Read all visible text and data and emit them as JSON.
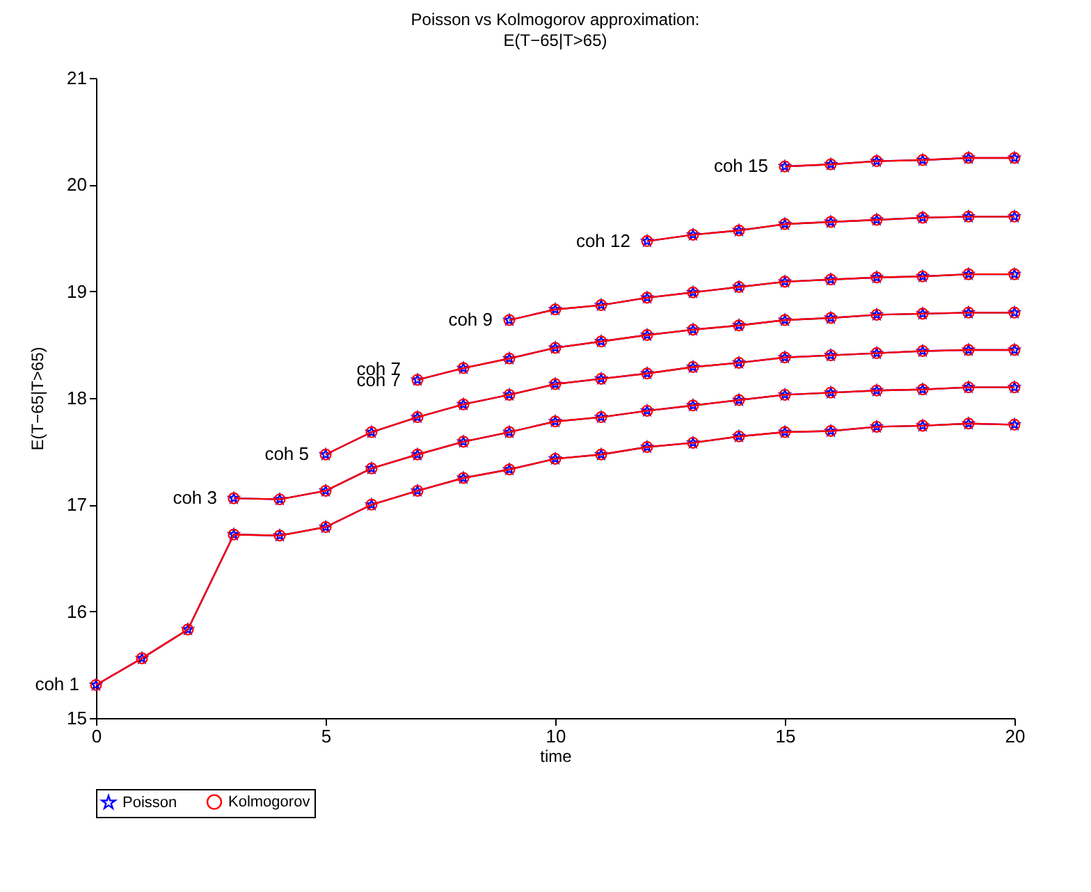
{
  "chart_data": {
    "type": "line",
    "title": "Poisson vs Kolmogorov approximation:\nE(T−65|T>65)",
    "xlabel": "time",
    "ylabel": "E(T−65|T>65)",
    "xlim": [
      0,
      20
    ],
    "xticks": [
      0,
      5,
      10,
      15,
      20
    ],
    "ylim": [
      15,
      21
    ],
    "yticks": [
      15,
      16,
      17,
      18,
      19,
      20,
      21
    ],
    "grid": false,
    "legend": "bottom",
    "line_style": "solid",
    "series": [
      {
        "name": "Poisson",
        "color": "#0000ff",
        "marker": "star",
        "x": [
          0,
          1,
          2,
          3,
          4,
          5,
          6,
          7,
          8,
          9,
          10,
          11,
          12,
          13,
          14,
          15,
          16,
          17,
          18,
          19,
          20
        ],
        "values": [
          15.31,
          15.56,
          15.83,
          16.72,
          16.71,
          16.79,
          17.0,
          17.13,
          17.25,
          17.33,
          17.43,
          17.47,
          17.54,
          17.58,
          17.64,
          17.68,
          17.69,
          17.73,
          17.74,
          17.76,
          17.75
        ]
      },
      {
        "name": "Kolmogorov",
        "color": "#ff0000",
        "marker": "circle",
        "x": [
          0,
          1,
          2,
          3,
          4,
          5,
          6,
          7,
          8,
          9,
          10,
          11,
          12,
          13,
          14,
          15,
          16,
          17,
          18,
          19,
          20
        ],
        "values": [
          15.31,
          15.56,
          15.83,
          16.72,
          16.71,
          16.79,
          17.0,
          17.13,
          17.25,
          17.33,
          17.43,
          17.47,
          17.54,
          17.58,
          17.64,
          17.68,
          17.69,
          17.73,
          17.74,
          17.76,
          17.75
        ]
      },
      {
        "color": "#0000ff",
        "marker": "star",
        "x": [
          3,
          4,
          5,
          6,
          7,
          8,
          9,
          10,
          11,
          12,
          13,
          14,
          15,
          16,
          17,
          18,
          19,
          20
        ],
        "values": [
          17.06,
          17.05,
          17.13,
          17.34,
          17.47,
          17.59,
          17.68,
          17.78,
          17.82,
          17.88,
          17.93,
          17.98,
          18.03,
          18.05,
          18.07,
          18.08,
          18.1,
          18.1
        ]
      },
      {
        "color": "#ff0000",
        "marker": "circle",
        "x": [
          3,
          4,
          5,
          6,
          7,
          8,
          9,
          10,
          11,
          12,
          13,
          14,
          15,
          16,
          17,
          18,
          19,
          20
        ],
        "values": [
          17.06,
          17.05,
          17.13,
          17.34,
          17.47,
          17.59,
          17.68,
          17.78,
          17.82,
          17.88,
          17.93,
          17.98,
          18.03,
          18.05,
          18.07,
          18.08,
          18.1,
          18.1
        ]
      },
      {
        "color": "#0000ff",
        "marker": "star",
        "x": [
          5,
          6,
          7,
          8,
          9,
          10,
          11,
          12,
          13,
          14,
          15,
          16,
          17,
          18,
          19,
          20
        ],
        "values": [
          17.47,
          17.68,
          17.82,
          17.94,
          18.03,
          18.13,
          18.18,
          18.23,
          18.29,
          18.33,
          18.38,
          18.4,
          18.42,
          18.44,
          18.45,
          18.45
        ]
      },
      {
        "color": "#ff0000",
        "marker": "circle",
        "x": [
          5,
          6,
          7,
          8,
          9,
          10,
          11,
          12,
          13,
          14,
          15,
          16,
          17,
          18,
          19,
          20
        ],
        "values": [
          17.47,
          17.68,
          17.82,
          17.94,
          18.03,
          18.13,
          18.18,
          18.23,
          18.29,
          18.33,
          18.38,
          18.4,
          18.42,
          18.44,
          18.45,
          18.45
        ]
      },
      {
        "color": "#0000ff",
        "marker": "star",
        "x": [
          7,
          8,
          9,
          10,
          11,
          12,
          13,
          14,
          15,
          16,
          17,
          18,
          19,
          20
        ],
        "values": [
          18.17,
          18.28,
          18.37,
          18.47,
          18.53,
          18.59,
          18.64,
          18.68,
          18.73,
          18.75,
          18.78,
          18.79,
          18.8,
          18.8
        ]
      },
      {
        "color": "#ff0000",
        "marker": "circle",
        "x": [
          7,
          8,
          9,
          10,
          11,
          12,
          13,
          14,
          15,
          16,
          17,
          18,
          19,
          20
        ],
        "values": [
          18.17,
          18.28,
          18.37,
          18.47,
          18.53,
          18.59,
          18.64,
          18.68,
          18.73,
          18.75,
          18.78,
          18.79,
          18.8,
          18.8
        ]
      },
      {
        "color": "#0000ff",
        "marker": "star",
        "x": [
          9,
          10,
          11,
          12,
          13,
          14,
          15,
          16,
          17,
          18,
          19,
          20
        ],
        "values": [
          18.73,
          18.83,
          18.87,
          18.94,
          18.99,
          19.04,
          19.09,
          19.11,
          19.13,
          19.14,
          19.16,
          19.16
        ]
      },
      {
        "color": "#ff0000",
        "marker": "circle",
        "x": [
          9,
          10,
          11,
          12,
          13,
          14,
          15,
          16,
          17,
          18,
          19,
          20
        ],
        "values": [
          18.73,
          18.83,
          18.87,
          18.94,
          18.99,
          19.04,
          19.09,
          19.11,
          19.13,
          19.14,
          19.16,
          19.16
        ]
      },
      {
        "color": "#0000ff",
        "marker": "star",
        "x": [
          12,
          13,
          14,
          15,
          16,
          17,
          18,
          19,
          20
        ],
        "values": [
          19.47,
          19.53,
          19.57,
          19.63,
          19.65,
          19.67,
          19.69,
          19.7,
          19.7
        ]
      },
      {
        "color": "#ff0000",
        "marker": "circle",
        "x": [
          12,
          13,
          14,
          15,
          16,
          17,
          18,
          19,
          20
        ],
        "values": [
          19.47,
          19.53,
          19.57,
          19.63,
          19.65,
          19.67,
          19.69,
          19.7,
          19.7
        ]
      },
      {
        "color": "#0000ff",
        "marker": "star",
        "x": [
          15,
          16,
          17,
          18,
          19,
          20
        ],
        "values": [
          20.17,
          20.19,
          20.22,
          20.23,
          20.25,
          20.25
        ]
      },
      {
        "color": "#ff0000",
        "marker": "circle",
        "x": [
          15,
          16,
          17,
          18,
          19,
          20
        ],
        "values": [
          20.17,
          20.19,
          20.22,
          20.23,
          20.25,
          20.25
        ]
      }
    ],
    "annotations": [
      {
        "text": "coh 1",
        "x": 0,
        "y": 15.31
      },
      {
        "text": "coh 3",
        "x": 3,
        "y": 17.06
      },
      {
        "text": "coh 5",
        "x": 5,
        "y": 17.47
      },
      {
        "text": "coh 7",
        "x": 7,
        "y": 18.27
      },
      {
        "text": "coh 7",
        "x": 7,
        "y": 18.16
      },
      {
        "text": "coh 9",
        "x": 9,
        "y": 18.73
      },
      {
        "text": "coh 12",
        "x": 12,
        "y": 19.47
      },
      {
        "text": "coh 15",
        "x": 15,
        "y": 20.17
      }
    ]
  }
}
